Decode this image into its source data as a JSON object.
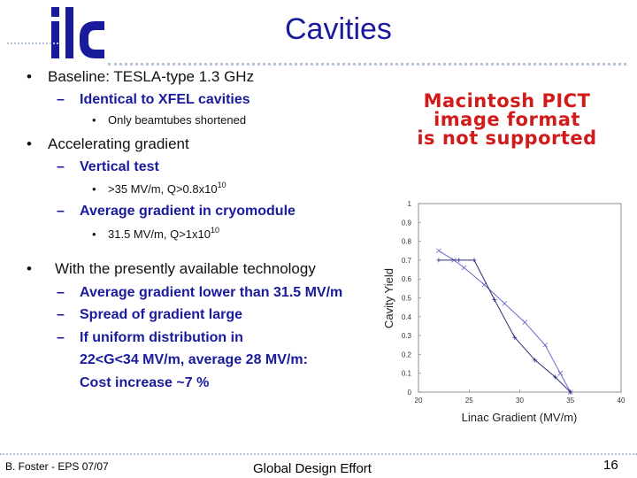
{
  "slide": {
    "title": "Cavities",
    "logo_text": "ilc"
  },
  "content": {
    "b1": "Baseline: TESLA-type 1.3 GHz",
    "b1_s1": "Identical to XFEL cavities",
    "b1_s1_s1": "Only beamtubes shortened",
    "b2": "Accelerating gradient",
    "b2_s1": "Vertical test",
    "b2_s1_s1_main": ">35 MV/m, Q>0.8x10",
    "b2_s1_s1_exp": "10",
    "b2_s2": "Average gradient in cryomodule",
    "b2_s2_s1_main": "31.5 MV/m, Q>1x10",
    "b2_s2_s1_exp": "10",
    "b3": "With the presently available technology",
    "b3_s1": "Average gradient lower than 31.5 MV/m",
    "b3_s2": "Spread of gradient large",
    "b3_s3_l1": "If uniform distribution in",
    "b3_s3_l2": "22<G<34 MV/m, average 28 MV/m:",
    "b3_s3_l3": "Cost increase ~7 %"
  },
  "pict_placeholder": {
    "line1": "Macintosh PICT",
    "line2": "image format",
    "line3": "is not supported"
  },
  "chart_data": {
    "type": "line",
    "xlabel": "Linac Gradient (MV/m)",
    "ylabel": "Cavity Yield",
    "xlim": [
      20,
      40
    ],
    "ylim": [
      0,
      1
    ],
    "x_ticks": [
      "20",
      "25",
      "30",
      "35",
      "40"
    ],
    "y_ticks": [
      "0",
      "0.1",
      "0.2",
      "0.3",
      "0.4",
      "0.5",
      "0.6",
      "0.7",
      "0.8",
      "0.9",
      "1"
    ],
    "series": [
      {
        "x": [
          22.0,
          23.5,
          24.5,
          26.5,
          28.5,
          30.5,
          32.5,
          34.0,
          35.0
        ],
        "y": [
          0.75,
          0.7,
          0.66,
          0.57,
          0.47,
          0.37,
          0.25,
          0.1,
          0.0
        ],
        "color": "#6a6ac8",
        "marker": "x"
      },
      {
        "x": [
          22.0,
          24.0,
          25.5,
          27.5,
          29.5,
          31.5,
          33.5,
          35.0
        ],
        "y": [
          0.7,
          0.7,
          0.7,
          0.49,
          0.29,
          0.17,
          0.08,
          0.0
        ],
        "color": "#2a2a7a",
        "marker": "+"
      }
    ]
  },
  "footer": {
    "left": "B. Foster - EPS 07/07",
    "center": "Global Design Effort",
    "page": "16"
  }
}
